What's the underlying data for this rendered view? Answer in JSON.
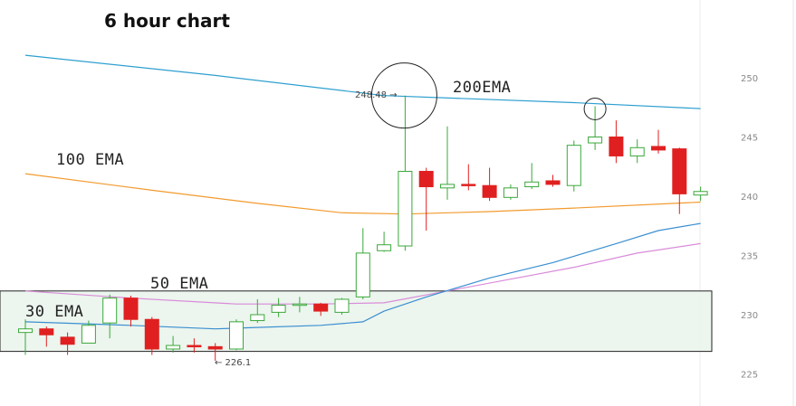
{
  "chart_data": {
    "type": "candlestick",
    "title": "6 hour chart",
    "ylim": [
      223,
      253
    ],
    "y_ticks": [
      "250",
      "245",
      "240",
      "235",
      "230",
      "225"
    ],
    "colors": {
      "up": "#3aa83a",
      "down": "#e02020",
      "ema200": "#2e9fd0",
      "ema100": "#f29a2e",
      "ema50": "#d98bd9",
      "ema30": "#3a8fd0",
      "zone_fill": "#eaf4ec",
      "zone_border": "#222222"
    },
    "candles": [
      {
        "o": 228.5,
        "h": 229.6,
        "l": 226.6,
        "c": 228.8
      },
      {
        "o": 228.8,
        "h": 229.0,
        "l": 227.3,
        "c": 228.3
      },
      {
        "o": 228.1,
        "h": 228.5,
        "l": 226.6,
        "c": 227.5
      },
      {
        "o": 227.6,
        "h": 229.5,
        "l": 227.6,
        "c": 229.1
      },
      {
        "o": 229.3,
        "h": 231.7,
        "l": 228.0,
        "c": 231.4
      },
      {
        "o": 231.4,
        "h": 231.6,
        "l": 229.0,
        "c": 229.6
      },
      {
        "o": 229.6,
        "h": 229.8,
        "l": 226.6,
        "c": 227.1
      },
      {
        "o": 227.1,
        "h": 228.2,
        "l": 226.8,
        "c": 227.4
      },
      {
        "o": 227.4,
        "h": 228.0,
        "l": 226.8,
        "c": 227.3
      },
      {
        "o": 227.3,
        "h": 227.6,
        "l": 226.1,
        "c": 227.1
      },
      {
        "o": 227.1,
        "h": 229.6,
        "l": 227.0,
        "c": 229.4
      },
      {
        "o": 229.5,
        "h": 231.3,
        "l": 229.3,
        "c": 230.0
      },
      {
        "o": 230.2,
        "h": 231.4,
        "l": 229.8,
        "c": 230.8
      },
      {
        "o": 230.9,
        "h": 231.5,
        "l": 230.2,
        "c": 230.9
      },
      {
        "o": 230.9,
        "h": 231.0,
        "l": 229.9,
        "c": 230.3
      },
      {
        "o": 230.2,
        "h": 231.4,
        "l": 230.0,
        "c": 231.3
      },
      {
        "o": 231.5,
        "h": 237.3,
        "l": 231.3,
        "c": 235.2
      },
      {
        "o": 235.4,
        "h": 237.0,
        "l": 235.3,
        "c": 235.9
      },
      {
        "o": 235.8,
        "h": 248.5,
        "l": 235.4,
        "c": 242.1
      },
      {
        "o": 242.1,
        "h": 242.4,
        "l": 237.1,
        "c": 240.8
      },
      {
        "o": 240.7,
        "h": 245.9,
        "l": 239.7,
        "c": 241.0
      },
      {
        "o": 241.0,
        "h": 242.7,
        "l": 240.5,
        "c": 240.9
      },
      {
        "o": 240.9,
        "h": 242.4,
        "l": 239.6,
        "c": 239.9
      },
      {
        "o": 239.9,
        "h": 241.0,
        "l": 239.7,
        "c": 240.7
      },
      {
        "o": 240.8,
        "h": 242.8,
        "l": 240.6,
        "c": 241.2
      },
      {
        "o": 241.3,
        "h": 241.8,
        "l": 240.8,
        "c": 241.0
      },
      {
        "o": 240.9,
        "h": 244.7,
        "l": 240.4,
        "c": 244.3
      },
      {
        "o": 244.5,
        "h": 247.6,
        "l": 243.9,
        "c": 245.0
      },
      {
        "o": 245.0,
        "h": 246.4,
        "l": 242.8,
        "c": 243.4
      },
      {
        "o": 243.4,
        "h": 244.8,
        "l": 242.8,
        "c": 244.1
      },
      {
        "o": 244.2,
        "h": 245.6,
        "l": 243.6,
        "c": 243.9
      },
      {
        "o": 244.0,
        "h": 244.1,
        "l": 238.5,
        "c": 240.2
      },
      {
        "o": 240.1,
        "h": 240.8,
        "l": 239.6,
        "c": 240.4
      }
    ],
    "ema_lines": [
      {
        "name": "200EMA",
        "key": "ema200",
        "points": [
          [
            0,
            251.9
          ],
          [
            9,
            250.2
          ],
          [
            17,
            248.5
          ],
          [
            26,
            247.9
          ],
          [
            32,
            247.4
          ]
        ]
      },
      {
        "name": "100 EMA",
        "key": "ema100",
        "points": [
          [
            0,
            241.9
          ],
          [
            6,
            240.5
          ],
          [
            11,
            239.4
          ],
          [
            15,
            238.6
          ],
          [
            18,
            238.5
          ],
          [
            22,
            238.7
          ],
          [
            26,
            239.0
          ],
          [
            32,
            239.5
          ]
        ]
      },
      {
        "name": "50 EMA",
        "key": "ema50",
        "points": [
          [
            0,
            232.0
          ],
          [
            5,
            231.4
          ],
          [
            10,
            230.9
          ],
          [
            14,
            230.9
          ],
          [
            17,
            231.0
          ],
          [
            20,
            232.0
          ],
          [
            23,
            233.0
          ],
          [
            26,
            234.0
          ],
          [
            29,
            235.2
          ],
          [
            32,
            236.0
          ]
        ]
      },
      {
        "name": "30 EMA",
        "key": "ema30",
        "points": [
          [
            0,
            229.4
          ],
          [
            5,
            229.1
          ],
          [
            9,
            228.8
          ],
          [
            14,
            229.1
          ],
          [
            16,
            229.4
          ],
          [
            17,
            230.3
          ],
          [
            19,
            231.5
          ],
          [
            22,
            233.1
          ],
          [
            25,
            234.4
          ],
          [
            28,
            236.0
          ],
          [
            30,
            237.1
          ],
          [
            32,
            237.7
          ]
        ]
      }
    ],
    "support_zone": {
      "from": 226.9,
      "to": 232.0
    },
    "highlights": [
      {
        "index": 18,
        "value": 248.5,
        "size": "large"
      },
      {
        "index": 27,
        "value": 247.6,
        "size": "small"
      }
    ],
    "labels": {
      "high_marker": "248.48 →",
      "low_marker": "← 226.1",
      "ema200": "200EMA",
      "ema100": "100 EMA",
      "ema50": "50 EMA",
      "ema30": "30 EMA"
    }
  }
}
